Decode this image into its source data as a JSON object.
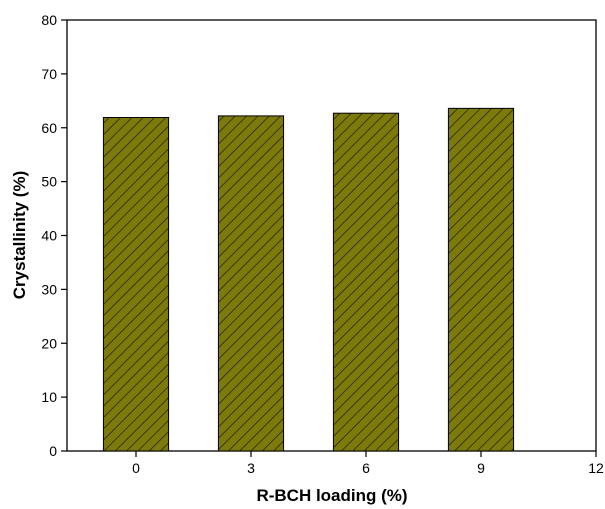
{
  "chart_data": {
    "type": "bar",
    "title": "",
    "xlabel": "R-BCH loading (%)",
    "ylabel": "Crystallinity (%)",
    "x": [
      0,
      3,
      6,
      9
    ],
    "values": [
      61.9,
      62.2,
      62.7,
      63.6
    ],
    "xlim": [
      -1.8,
      12
    ],
    "ylim": [
      0,
      80
    ],
    "xticks": [
      "0",
      "3",
      "6",
      "9",
      "12"
    ],
    "yticks": [
      "0",
      "10",
      "20",
      "30",
      "40",
      "50",
      "60",
      "70",
      "80"
    ],
    "bar_width": 1.7,
    "bar_color": "#7d7a0c",
    "hatch": "diagonal",
    "grid": false,
    "legend": "none"
  }
}
